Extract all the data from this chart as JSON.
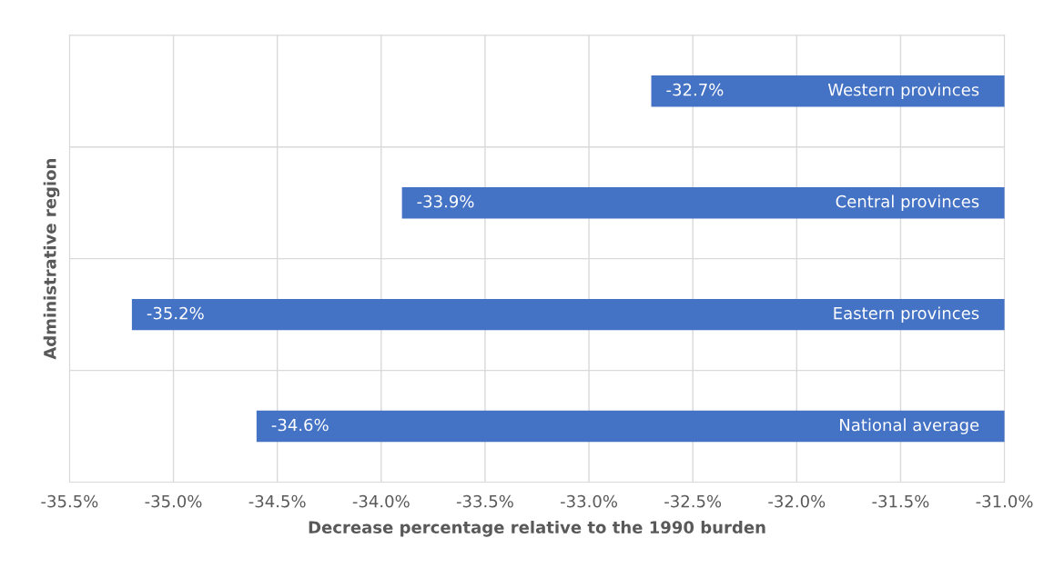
{
  "chart_data": {
    "type": "bar",
    "orientation": "horizontal",
    "xlabel": "Decrease percentage relative to the 1990 burden",
    "ylabel": "Administrative region",
    "categories": [
      "Western provinces",
      "Central provinces",
      "Eastern provinces",
      "National average"
    ],
    "values": [
      -32.7,
      -33.9,
      -35.2,
      -34.6
    ],
    "value_labels": [
      "-32.7%",
      "-33.9%",
      "-35.2%",
      "-34.6%"
    ],
    "color": "#4472c4",
    "xlim": [
      -35.5,
      -31.0
    ],
    "xticks": [
      {
        "value": -35.5,
        "label": "-35.5%"
      },
      {
        "value": -35.0,
        "label": "-35.0%"
      },
      {
        "value": -34.5,
        "label": "-34.5%"
      },
      {
        "value": -34.0,
        "label": "-34.0%"
      },
      {
        "value": -33.5,
        "label": "-33.5%"
      },
      {
        "value": -33.0,
        "label": "-33.0%"
      },
      {
        "value": -32.5,
        "label": "-32.5%"
      },
      {
        "value": -32.0,
        "label": "-32.0%"
      },
      {
        "value": -31.5,
        "label": "-31.5%"
      },
      {
        "value": -31.0,
        "label": "-31.0%"
      }
    ],
    "grid": true,
    "tick_labels": "x"
  }
}
